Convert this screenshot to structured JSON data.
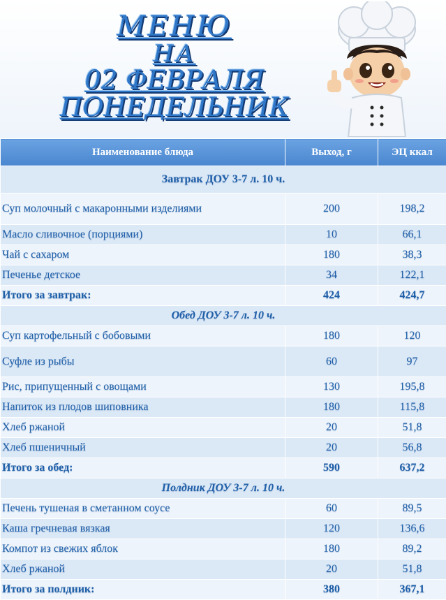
{
  "title": {
    "line1": "МЕНЮ",
    "line2": "НА",
    "line3": "02 ФЕВРАЛЯ",
    "line4": "ПОНЕДЕЛЬНИК"
  },
  "table": {
    "headers": {
      "name": "Наименование блюда",
      "yield": "Выход, г",
      "kcal": "ЭЦ ккал"
    },
    "breakfast": {
      "title": "Завтрак ДОУ 3-7 л. 10 ч.",
      "rows": [
        {
          "name": "Суп молочный с макаронными изделиями",
          "yield": "200",
          "kcal": "198,2"
        },
        {
          "name": "Масло сливочное (порциями)",
          "yield": "10",
          "kcal": "66,1"
        },
        {
          "name": "Чай с сахаром",
          "yield": "180",
          "kcal": "38,3"
        },
        {
          "name": "Печенье детское",
          "yield": "34",
          "kcal": "122,1"
        }
      ],
      "total": {
        "name": "Итого за завтрак:",
        "yield": "424",
        "kcal": "424,7"
      }
    },
    "lunch": {
      "title": "Обед ДОУ 3-7 л. 10 ч.",
      "rows": [
        {
          "name": "Суп картофельный с бобовыми",
          "yield": "180",
          "kcal": "120"
        },
        {
          "name": "Суфле из рыбы",
          "yield": "60",
          "kcal": "97"
        },
        {
          "name": "Рис, припущенный с овощами",
          "yield": "130",
          "kcal": "195,8"
        },
        {
          "name": "Напиток из плодов шиповника",
          "yield": "180",
          "kcal": "115,8"
        },
        {
          "name": "Хлеб ржаной",
          "yield": "20",
          "kcal": "51,8"
        },
        {
          "name": "Хлеб пшеничный",
          "yield": "20",
          "kcal": "56,8"
        }
      ],
      "total": {
        "name": "Итого за обед:",
        "yield": "590",
        "kcal": "637,2"
      }
    },
    "snack": {
      "title": "Полдник ДОУ 3-7 л. 10 ч.",
      "rows": [
        {
          "name": "Печень тушеная в сметанном соусе",
          "yield": "60",
          "kcal": "89,5"
        },
        {
          "name": "Каша гречневая вязкая",
          "yield": "120",
          "kcal": "136,6"
        },
        {
          "name": "Компот из свежих яблок",
          "yield": "180",
          "kcal": "89,2"
        },
        {
          "name": "Хлеб ржаной",
          "yield": "20",
          "kcal": "51,8"
        }
      ],
      "total": {
        "name": "Итого за полдник:",
        "yield": "380",
        "kcal": "367,1"
      }
    }
  },
  "colors": {
    "title_blue": "#2f77c8",
    "text_blue": "#1f5fa8",
    "header_blue": "#4a86cf",
    "row_alt": "#dbe8f6",
    "row_plain": "#eef4fb"
  },
  "illustration": "chef-mascot-thumbs-up"
}
